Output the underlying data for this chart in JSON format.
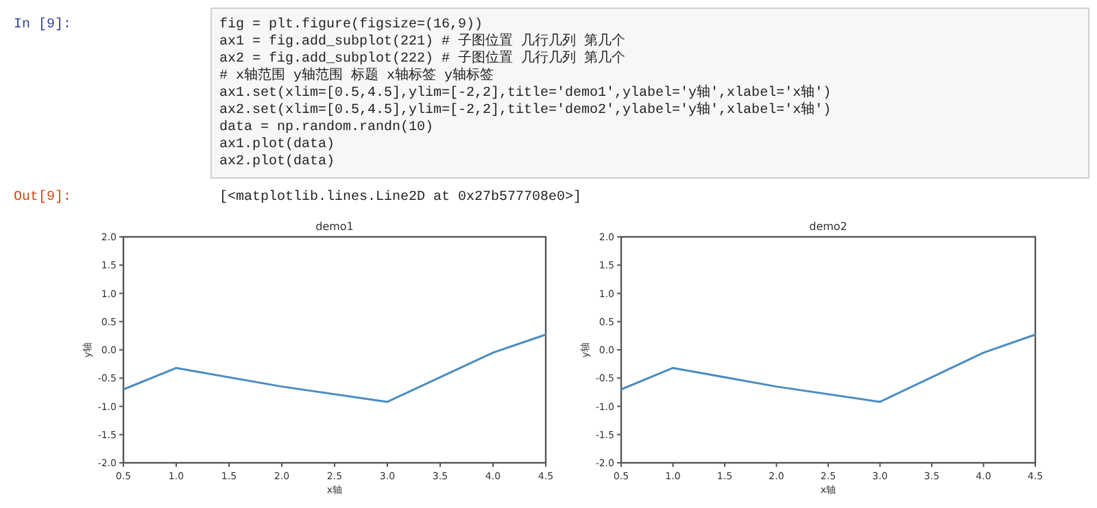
{
  "chart_data": [
    {
      "type": "line",
      "title": "demo1",
      "xlabel": "x轴",
      "ylabel": "y轴",
      "xlim": [
        0.5,
        4.5
      ],
      "ylim": [
        -2,
        2
      ],
      "xticks": [
        {
          "value": 0.5,
          "label": "0.5"
        },
        {
          "value": 1,
          "label": "1.0"
        },
        {
          "value": 1.5,
          "label": "1.5"
        },
        {
          "value": 2,
          "label": "2.0"
        },
        {
          "value": 2.5,
          "label": "2.5"
        },
        {
          "value": 3,
          "label": "3.0"
        },
        {
          "value": 3.5,
          "label": "3.5"
        },
        {
          "value": 4,
          "label": "4.0"
        },
        {
          "value": 4.5,
          "label": "4.5"
        }
      ],
      "yticks": [
        {
          "value": -2,
          "label": "-2.0"
        },
        {
          "value": -1.5,
          "label": "-1.5"
        },
        {
          "value": -1,
          "label": "-1.0"
        },
        {
          "value": -0.5,
          "label": "-0.5"
        },
        {
          "value": 0,
          "label": "0.0"
        },
        {
          "value": 0.5,
          "label": "0.5"
        },
        {
          "value": 1,
          "label": "1.0"
        },
        {
          "value": 1.5,
          "label": "1.5"
        },
        {
          "value": 2,
          "label": "2.0"
        }
      ],
      "x": [
        0.5,
        1,
        2,
        3,
        4,
        4.5
      ],
      "series": [
        {
          "color": "#4a8cc2",
          "values": [
            -0.7,
            -0.32,
            -0.65,
            -0.92,
            -0.05,
            0.27
          ]
        }
      ],
      "annotations": [
        "In [9]:",
        "fig = plt.figure(figsize=(16,9))",
        "ax1 = fig.add_subplot(221)  # 子图位置  几行几列  第几个",
        "ax2 = fig.add_subplot(222)  # 子图位置  几行几列  第几个",
        "#  x轴范围 y轴范围  标题  x轴标签  y轴标签",
        "ax1.set(xlim=[0.5,4.5],ylim=[-2,2],title='demo1',ylabel='y轴',xlabel='x轴')",
        "ax2.set(xlim=[0.5,4.5],ylim=[-2,2],title='demo2',ylabel='y轴',xlabel='x轴')",
        "data = np.random.randn(10)",
        "ax1.plot(data)",
        "ax2.plot(data)",
        "Out[9]:",
        "[<matplotlib.lines.Line2D at 0x27b577708e0>]"
      ]
    },
    {
      "type": "line",
      "title": "demo2",
      "xlabel": "x轴",
      "ylabel": "y轴",
      "xlim": [
        0.5,
        4.5
      ],
      "ylim": [
        -2,
        2
      ],
      "xticks": [
        {
          "value": 0.5,
          "label": "0.5"
        },
        {
          "value": 1,
          "label": "1.0"
        },
        {
          "value": 1.5,
          "label": "1.5"
        },
        {
          "value": 2,
          "label": "2.0"
        },
        {
          "value": 2.5,
          "label": "2.5"
        },
        {
          "value": 3,
          "label": "3.0"
        },
        {
          "value": 3.5,
          "label": "3.5"
        },
        {
          "value": 4,
          "label": "4.0"
        },
        {
          "value": 4.5,
          "label": "4.5"
        }
      ],
      "yticks": [
        {
          "value": -2,
          "label": "-2.0"
        },
        {
          "value": -1.5,
          "label": "-1.5"
        },
        {
          "value": -1,
          "label": "-1.0"
        },
        {
          "value": -0.5,
          "label": "-0.5"
        },
        {
          "value": 0,
          "label": "0.0"
        },
        {
          "value": 0.5,
          "label": "0.5"
        },
        {
          "value": 1,
          "label": "1.0"
        },
        {
          "value": 1.5,
          "label": "1.5"
        },
        {
          "value": 2,
          "label": "2.0"
        }
      ],
      "x": [
        0.5,
        1,
        2,
        3,
        4,
        4.5
      ],
      "series": [
        {
          "color": "#4a8cc2",
          "values": [
            -0.7,
            -0.32,
            -0.65,
            -0.92,
            -0.05,
            0.27
          ]
        }
      ]
    }
  ]
}
